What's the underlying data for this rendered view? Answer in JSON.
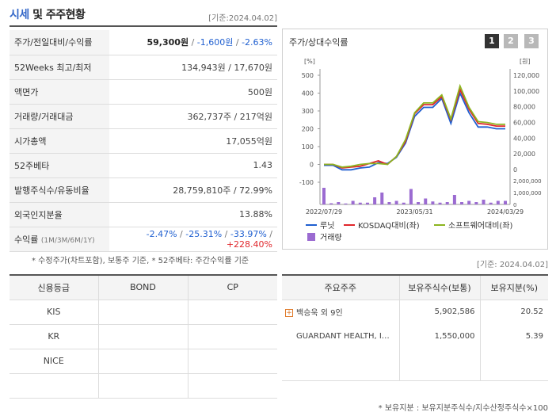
{
  "header": {
    "title_main": "시세",
    "title_rest": "및 주주현황",
    "date": "[기준:2024.04.02]"
  },
  "price_table": {
    "rows": [
      {
        "label": "주가/전일대비/수익률",
        "price": "59,300원",
        "sep1": " / ",
        "change": "-1,600원",
        "sep2": " / ",
        "pct": "-2.63%"
      },
      {
        "label": "52Weeks 최고/최저",
        "value": "134,943원 / 17,670원"
      },
      {
        "label": "액면가",
        "value": "500원"
      },
      {
        "label": "거래량/거래대금",
        "value": "362,737주 / 217억원"
      },
      {
        "label": "시가총액",
        "value": "17,055억원"
      },
      {
        "label": "52주베타",
        "value": "1.43"
      },
      {
        "label": "발행주식수/유동비율",
        "value": "28,759,810주 / 72.99%"
      },
      {
        "label": "외국인지분율",
        "value": "13.88%"
      },
      {
        "label": "수익률",
        "sublabel": "(1M/3M/6M/1Y)",
        "r1": "-2.47%",
        "r2": "-25.31%",
        "r3": "-33.97%",
        "r4": "+228.40%",
        "sep": " / "
      }
    ],
    "note": "* 수정주가(차트포함), 보통주 기준, * 52주베타: 주간수익률 기준"
  },
  "chart_panel": {
    "title": "주가/상대수익률",
    "pages": [
      "1",
      "2",
      "3"
    ],
    "active_page": "1",
    "left_unit": "[%]",
    "right_unit": "[원]"
  },
  "chart_data": {
    "type": "line",
    "x_ticks": [
      "2022/07/29",
      "2023/05/31",
      "2024/03/29"
    ],
    "y_left_ticks": [
      "500",
      "400",
      "300",
      "200",
      "100",
      "0",
      "-100"
    ],
    "y_left_range": [
      -100,
      500
    ],
    "y_right_ticks": [
      "120,000",
      "100,000",
      "80,000",
      "60,000",
      "40,000",
      "20,000",
      "0"
    ],
    "y_right_range": [
      0,
      120000
    ],
    "volume_ticks": [
      "2,000,000",
      "1,000,000",
      "0"
    ],
    "volume_range": [
      0,
      2000000
    ],
    "series": [
      {
        "name": "루닛",
        "color": "#1f5fd0",
        "values": [
          -5,
          -5,
          -30,
          -30,
          -20,
          -15,
          10,
          5,
          40,
          120,
          270,
          320,
          320,
          370,
          230,
          400,
          290,
          210,
          210,
          200,
          200
        ]
      },
      {
        "name": "KOSDAQ대비(좌)",
        "color": "#e0262b",
        "values": [
          0,
          0,
          -20,
          -15,
          -10,
          5,
          20,
          0,
          45,
          130,
          285,
          335,
          335,
          380,
          250,
          420,
          310,
          230,
          225,
          215,
          215
        ]
      },
      {
        "name": "소프트웨어대비(좌)",
        "color": "#8cb520",
        "values": [
          0,
          0,
          -15,
          -10,
          0,
          5,
          5,
          0,
          45,
          140,
          290,
          345,
          345,
          390,
          255,
          440,
          320,
          240,
          235,
          225,
          225
        ]
      }
    ],
    "volume_name": "거래량",
    "volume_color": "#9b6bd1",
    "volume": [
      1400000,
      100000,
      200000,
      80000,
      300000,
      150000,
      150000,
      600000,
      1000000,
      200000,
      300000,
      150000,
      1300000,
      200000,
      500000,
      250000,
      150000,
      200000,
      800000,
      200000,
      300000,
      200000,
      400000,
      150000,
      300000,
      300000
    ]
  },
  "credit_table": {
    "headers": [
      "신용등급",
      "BOND",
      "CP"
    ],
    "rows": [
      {
        "agency": "KIS",
        "bond": "",
        "cp": ""
      },
      {
        "agency": "KR",
        "bond": "",
        "cp": ""
      },
      {
        "agency": "NICE",
        "bond": "",
        "cp": ""
      },
      {
        "agency": "",
        "bond": "",
        "cp": ""
      }
    ]
  },
  "holders": {
    "date": "[기준: 2024.04.02]",
    "headers": [
      "주요주주",
      "보유주식수(보통)",
      "보유지분(%)"
    ],
    "rows": [
      {
        "name": "백승욱 외 9인",
        "shares": "5,902,586",
        "pct": "20.52"
      },
      {
        "name": "GUARDANT HEALTH, I…",
        "shares": "1,550,000",
        "pct": "5.39"
      }
    ],
    "note": "* 보유지분 : 보유지분주식수/지수산정주식수×100"
  }
}
